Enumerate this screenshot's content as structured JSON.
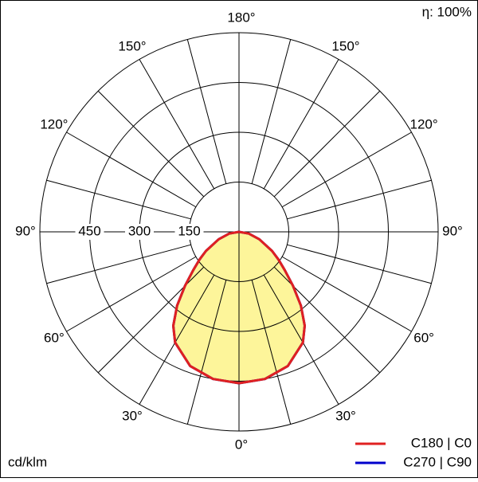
{
  "chart_data": {
    "type": "polar",
    "annotation": "η: 100%",
    "unit_label": "cd/klm",
    "angles": [
      0,
      10,
      20,
      30,
      35,
      40,
      45,
      50,
      55,
      60,
      70,
      80,
      90
    ],
    "fill_color": "#fdf59a",
    "series": [
      {
        "name": "C270 | C90",
        "color": "#0000cc",
        "values": [
          456,
          450,
          430,
          385,
          345,
          290,
          230,
          180,
          145,
          115,
          65,
          30,
          0
        ]
      },
      {
        "name": "C180 | C0",
        "color": "#e02020",
        "values": [
          456,
          450,
          430,
          385,
          345,
          290,
          230,
          180,
          145,
          115,
          65,
          30,
          0
        ]
      }
    ],
    "rlim": [
      0,
      600
    ],
    "rticks": [
      150,
      300,
      450,
      600
    ],
    "rtick_labels_shown": [
      150,
      300,
      450
    ],
    "angle_ticks": [
      {
        "value": 0,
        "label": "0°"
      },
      {
        "value": 30,
        "label": "30°"
      },
      {
        "value": 60,
        "label": "60°"
      },
      {
        "value": 90,
        "label": "90°"
      },
      {
        "value": 120,
        "label": "120°"
      },
      {
        "value": 150,
        "label": "150°"
      },
      {
        "value": 180,
        "label": "180°"
      }
    ]
  }
}
